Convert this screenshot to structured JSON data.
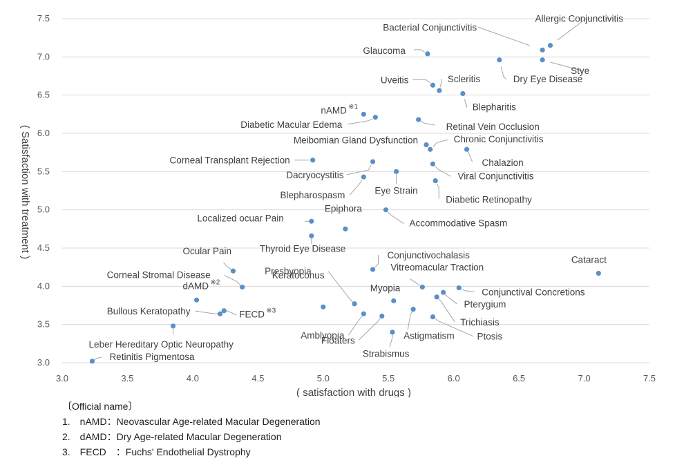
{
  "chart_data": {
    "type": "scatter",
    "title": "",
    "xlabel": "( satisfaction with drugs )",
    "ylabel": "( Satisfaction with treatment )",
    "xlim": [
      3.0,
      7.5
    ],
    "ylim": [
      3.0,
      7.5
    ],
    "xticks": [
      "3.0",
      "3.5",
      "4.0",
      "4.5",
      "5.0",
      "5.5",
      "6.0",
      "6.5",
      "7.0",
      "7.5"
    ],
    "yticks": [
      "3.0",
      "3.5",
      "4.0",
      "4.5",
      "5.0",
      "5.5",
      "6.0",
      "6.5",
      "7.0",
      "7.5"
    ],
    "grid": "horizontal",
    "marker_color": "#5b8fc7",
    "points": [
      {
        "label": "Allergic Conjunctivitis",
        "x": 6.74,
        "y": 7.15
      },
      {
        "label": "Bacterial Conjunctivitis",
        "x": 6.68,
        "y": 7.09
      },
      {
        "label": "Stye",
        "x": 6.68,
        "y": 6.96
      },
      {
        "label": "Glaucoma",
        "x": 5.8,
        "y": 7.04
      },
      {
        "label": "Dry Eye Disease",
        "x": 6.35,
        "y": 6.96
      },
      {
        "label": "Uveitis",
        "x": 5.84,
        "y": 6.63
      },
      {
        "label": "Scleritis",
        "x": 5.89,
        "y": 6.56
      },
      {
        "label": "Blepharitis",
        "x": 6.07,
        "y": 6.52
      },
      {
        "label": "nAMD",
        "sup": "※1",
        "x": 5.31,
        "y": 6.25
      },
      {
        "label": "Diabetic Macular Edema",
        "x": 5.4,
        "y": 6.21
      },
      {
        "label": "Retinal Vein Occlusion",
        "x": 5.73,
        "y": 6.18
      },
      {
        "label": "Meibomian Gland Dysfunction",
        "x": 5.79,
        "y": 5.85
      },
      {
        "label": "Chronic Conjunctivitis",
        "x": 5.82,
        "y": 5.79
      },
      {
        "label": "Chalazion",
        "x": 6.1,
        "y": 5.79
      },
      {
        "label": "Corneal Transplant Rejection",
        "x": 4.92,
        "y": 5.65
      },
      {
        "label": "Dacryocystitis",
        "x": 5.38,
        "y": 5.63
      },
      {
        "label": "Viral Conjunctivitis",
        "x": 5.84,
        "y": 5.6
      },
      {
        "label": "Eye Strain",
        "x": 5.56,
        "y": 5.5
      },
      {
        "label": "Blepharospasm",
        "x": 5.31,
        "y": 5.43
      },
      {
        "label": "Diabetic Retinopathy",
        "x": 5.86,
        "y": 5.38
      },
      {
        "label": "Accommodative Spasm",
        "x": 5.48,
        "y": 5.0
      },
      {
        "label": "Localized ocuar Pain",
        "x": 4.91,
        "y": 4.85
      },
      {
        "label": "Epiphora",
        "x": 5.17,
        "y": 4.75
      },
      {
        "label": "Thyroid Eye Disease",
        "x": 4.91,
        "y": 4.66
      },
      {
        "label": "Conjunctivochalasis",
        "x": 5.38,
        "y": 4.22
      },
      {
        "label": "Ocular Pain",
        "x": 4.31,
        "y": 4.2
      },
      {
        "label": "Cataract",
        "x": 7.11,
        "y": 4.17
      },
      {
        "label": "Corneal Stromal Disease",
        "x": 4.38,
        "y": 3.99
      },
      {
        "label": "Vitreomacular Traction",
        "x": 5.76,
        "y": 3.99
      },
      {
        "label": "Conjunctival Concretions",
        "x": 6.04,
        "y": 3.98
      },
      {
        "label": "Pterygium",
        "x": 5.92,
        "y": 3.92
      },
      {
        "label": "Trichiasis",
        "x": 5.87,
        "y": 3.86
      },
      {
        "label": "dAMD",
        "sup": "※2",
        "x": 4.03,
        "y": 3.82
      },
      {
        "label": "Myopia",
        "x": 5.54,
        "y": 3.81
      },
      {
        "label": "Presbyopia",
        "x": 5.24,
        "y": 3.77
      },
      {
        "label": "Keratoconus",
        "x": 5.0,
        "y": 3.73
      },
      {
        "label": "Astigmatism",
        "x": 5.69,
        "y": 3.7
      },
      {
        "label": "FECD",
        "sup": "※3",
        "x": 4.24,
        "y": 3.68
      },
      {
        "label": "Bullous Keratopathy",
        "x": 4.21,
        "y": 3.64
      },
      {
        "label": "Amblyopia",
        "x": 5.31,
        "y": 3.64
      },
      {
        "label": "Floaters",
        "x": 5.45,
        "y": 3.61
      },
      {
        "label": "Ptosis",
        "x": 5.84,
        "y": 3.6
      },
      {
        "label": "Leber Hereditary Optic Neuropathy",
        "x": 3.85,
        "y": 3.48
      },
      {
        "label": "Strabismus",
        "x": 5.53,
        "y": 3.4
      },
      {
        "label": "Retinitis Pigmentosa",
        "x": 3.23,
        "y": 3.02
      }
    ]
  },
  "notes": {
    "heading": "〔Official name〕",
    "items": [
      "1.　nAMD：Neovascular Age-related Macular Degeneration",
      "2.　dAMD：Dry Age-related Macular Degeneration",
      "3.　FECD　：Fuchs' Endothelial Dystrophy"
    ]
  }
}
